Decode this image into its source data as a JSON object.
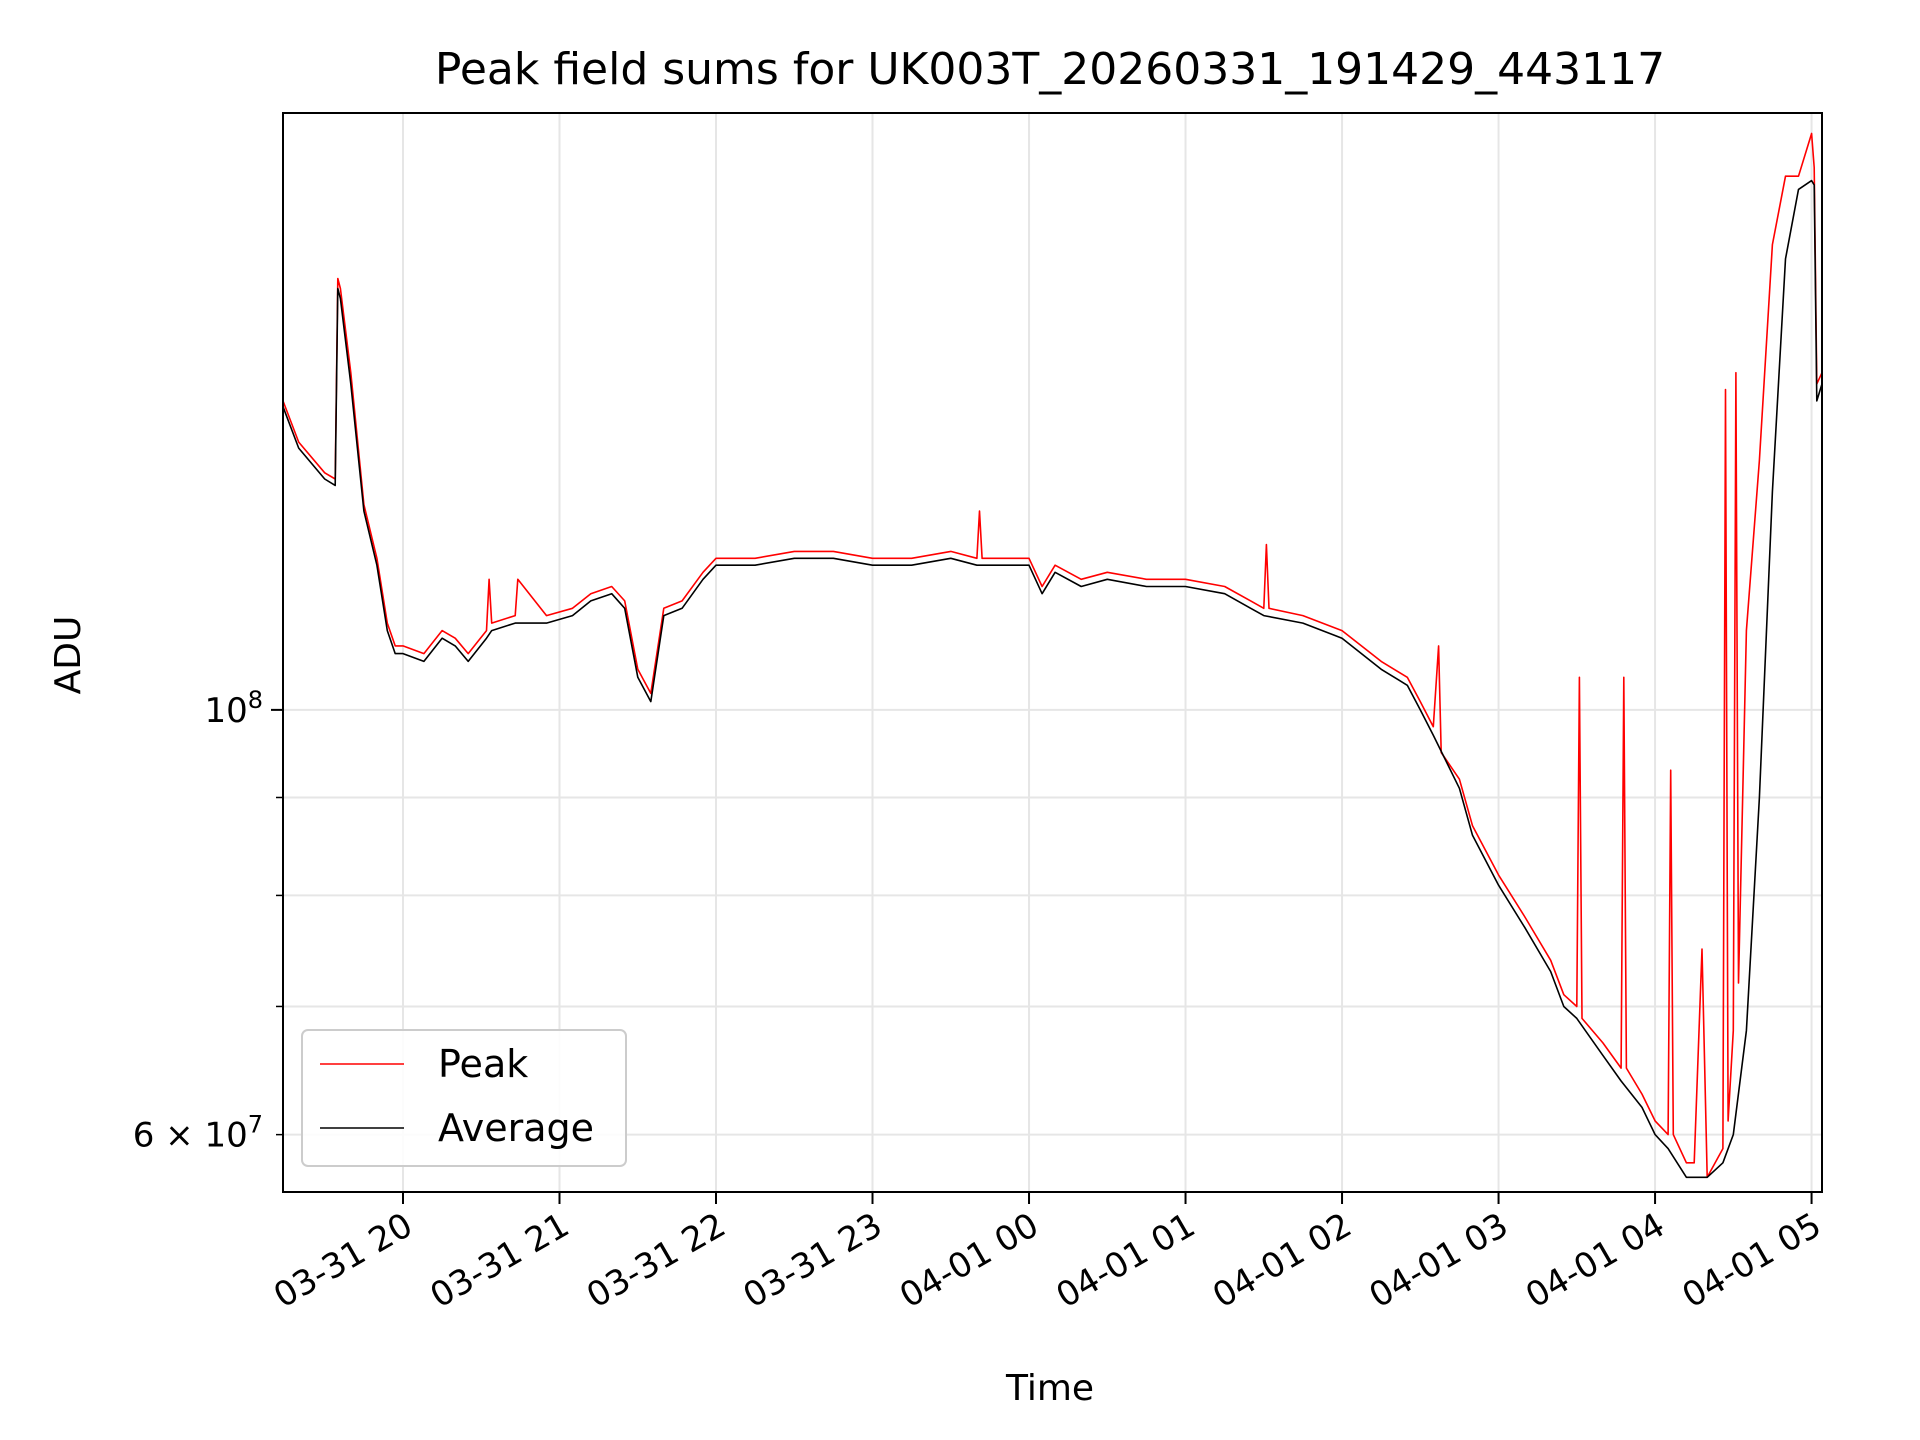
{
  "chart_data": {
    "type": "line",
    "title": "Peak field sums for UK003T_20260331_191429_443117",
    "xlabel": "Time",
    "ylabel": "ADU",
    "yscale": "log",
    "grid": true,
    "legend_position": "lower-left",
    "xlim": [
      "2026-03-31 19:14",
      "2026-04-01 05:04"
    ],
    "ylim": [
      56000000,
      205000000
    ],
    "x_ticks": [
      "2026-03-31 20:00",
      "2026-03-31 21:00",
      "2026-03-31 22:00",
      "2026-03-31 23:00",
      "2026-04-01 00:00",
      "2026-04-01 01:00",
      "2026-04-01 02:00",
      "2026-04-01 03:00",
      "2026-04-01 04:00",
      "2026-04-01 05:00"
    ],
    "x_tick_labels": [
      "03-31 20",
      "03-31 21",
      "03-31 22",
      "03-31 23",
      "04-01 00",
      "04-01 01",
      "04-01 02",
      "04-01 03",
      "04-01 04",
      "04-01 05"
    ],
    "y_major_ticks": [
      100000000
    ],
    "y_major_tick_labels": [
      "10^8"
    ],
    "y_minor_ticks": [
      60000000,
      70000000,
      80000000,
      90000000
    ],
    "y_minor_tick_labels": [
      "6 × 10^7",
      "",
      "",
      ""
    ],
    "series": [
      {
        "name": "Peak",
        "color": "#ff0000",
        "x": [
          "2026-03-31 19:14",
          "2026-03-31 19:20",
          "2026-03-31 19:30",
          "2026-03-31 19:34",
          "2026-03-31 19:35",
          "2026-03-31 19:36",
          "2026-03-31 19:40",
          "2026-03-31 19:45",
          "2026-03-31 19:50",
          "2026-03-31 19:54",
          "2026-03-31 19:57",
          "2026-03-31 20:00",
          "2026-03-31 20:08",
          "2026-03-31 20:15",
          "2026-03-31 20:20",
          "2026-03-31 20:25",
          "2026-03-31 20:32",
          "2026-03-31 20:33",
          "2026-03-31 20:34",
          "2026-03-31 20:43",
          "2026-03-31 20:44",
          "2026-03-31 20:55",
          "2026-03-31 21:05",
          "2026-03-31 21:12",
          "2026-03-31 21:20",
          "2026-03-31 21:25",
          "2026-03-31 21:30",
          "2026-03-31 21:35",
          "2026-03-31 21:40",
          "2026-03-31 21:47",
          "2026-03-31 21:55",
          "2026-03-31 22:00",
          "2026-03-31 22:15",
          "2026-03-31 22:30",
          "2026-03-31 22:45",
          "2026-03-31 23:00",
          "2026-03-31 23:15",
          "2026-03-31 23:30",
          "2026-03-31 23:40",
          "2026-03-31 23:41",
          "2026-03-31 23:42",
          "2026-03-31 23:50",
          "2026-04-01 00:00",
          "2026-04-01 00:05",
          "2026-04-01 00:10",
          "2026-04-01 00:20",
          "2026-04-01 00:30",
          "2026-04-01 00:45",
          "2026-04-01 01:00",
          "2026-04-01 01:15",
          "2026-04-01 01:25",
          "2026-04-01 01:30",
          "2026-04-01 01:31",
          "2026-04-01 01:32",
          "2026-04-01 01:45",
          "2026-04-01 02:00",
          "2026-04-01 02:15",
          "2026-04-01 02:25",
          "2026-04-01 02:30",
          "2026-04-01 02:35",
          "2026-04-01 02:37",
          "2026-04-01 02:38",
          "2026-04-01 02:45",
          "2026-04-01 02:50",
          "2026-04-01 03:00",
          "2026-04-01 03:10",
          "2026-04-01 03:20",
          "2026-04-01 03:25",
          "2026-04-01 03:30",
          "2026-04-01 03:31",
          "2026-04-01 03:32",
          "2026-04-01 03:40",
          "2026-04-01 03:47",
          "2026-04-01 03:48",
          "2026-04-01 03:49",
          "2026-04-01 03:55",
          "2026-04-01 04:00",
          "2026-04-01 04:05",
          "2026-04-01 04:06",
          "2026-04-01 04:07",
          "2026-04-01 04:12",
          "2026-04-01 04:15",
          "2026-04-01 04:18",
          "2026-04-01 04:20",
          "2026-04-01 04:26",
          "2026-04-01 04:27",
          "2026-04-01 04:28",
          "2026-04-01 04:30",
          "2026-04-01 04:31",
          "2026-04-01 04:32",
          "2026-04-01 04:35",
          "2026-04-01 04:40",
          "2026-04-01 04:45",
          "2026-04-01 04:50",
          "2026-04-01 04:55",
          "2026-04-01 05:00",
          "2026-04-01 05:01",
          "2026-04-01 05:02",
          "2026-04-01 05:04"
        ],
        "values": [
          145000000,
          138000000,
          133000000,
          132000000,
          168000000,
          166000000,
          150000000,
          128000000,
          120000000,
          111000000,
          108000000,
          108000000,
          107000000,
          110000000,
          109000000,
          107000000,
          110000000,
          117000000,
          111000000,
          112000000,
          117000000,
          112000000,
          113000000,
          115000000,
          116000000,
          114000000,
          105000000,
          102000000,
          113000000,
          114000000,
          118000000,
          120000000,
          120000000,
          121000000,
          121000000,
          120000000,
          120000000,
          121000000,
          120000000,
          127000000,
          120000000,
          120000000,
          120000000,
          116000000,
          119000000,
          117000000,
          118000000,
          117000000,
          117000000,
          116000000,
          114000000,
          113000000,
          122000000,
          113000000,
          112000000,
          110000000,
          106000000,
          104000000,
          101000000,
          98000000,
          108000000,
          95000000,
          92000000,
          87000000,
          82000000,
          78000000,
          74000000,
          71000000,
          70000000,
          104000000,
          69000000,
          67000000,
          65000000,
          104000000,
          65000000,
          63000000,
          61000000,
          60000000,
          93000000,
          60000000,
          58000000,
          58000000,
          75000000,
          57000000,
          59000000,
          147000000,
          61000000,
          68000000,
          150000000,
          72000000,
          110000000,
          135000000,
          175000000,
          190000000,
          190000000,
          200000000,
          192000000,
          148000000,
          150000000
        ]
      },
      {
        "name": "Average",
        "color": "#000000",
        "x": [
          "2026-03-31 19:14",
          "2026-03-31 19:20",
          "2026-03-31 19:30",
          "2026-03-31 19:34",
          "2026-03-31 19:35",
          "2026-03-31 19:36",
          "2026-03-31 19:40",
          "2026-03-31 19:45",
          "2026-03-31 19:50",
          "2026-03-31 19:54",
          "2026-03-31 19:57",
          "2026-03-31 20:00",
          "2026-03-31 20:08",
          "2026-03-31 20:15",
          "2026-03-31 20:20",
          "2026-03-31 20:25",
          "2026-03-31 20:32",
          "2026-03-31 20:34",
          "2026-03-31 20:43",
          "2026-03-31 20:55",
          "2026-03-31 21:05",
          "2026-03-31 21:12",
          "2026-03-31 21:20",
          "2026-03-31 21:25",
          "2026-03-31 21:30",
          "2026-03-31 21:35",
          "2026-03-31 21:40",
          "2026-03-31 21:47",
          "2026-03-31 21:55",
          "2026-03-31 22:00",
          "2026-03-31 22:15",
          "2026-03-31 22:30",
          "2026-03-31 22:45",
          "2026-03-31 23:00",
          "2026-03-31 23:15",
          "2026-03-31 23:30",
          "2026-03-31 23:40",
          "2026-03-31 23:50",
          "2026-04-01 00:00",
          "2026-04-01 00:05",
          "2026-04-01 00:10",
          "2026-04-01 00:20",
          "2026-04-01 00:30",
          "2026-04-01 00:45",
          "2026-04-01 01:00",
          "2026-04-01 01:15",
          "2026-04-01 01:25",
          "2026-04-01 01:30",
          "2026-04-01 01:45",
          "2026-04-01 02:00",
          "2026-04-01 02:15",
          "2026-04-01 02:25",
          "2026-04-01 02:30",
          "2026-04-01 02:35",
          "2026-04-01 02:45",
          "2026-04-01 02:50",
          "2026-04-01 03:00",
          "2026-04-01 03:10",
          "2026-04-01 03:20",
          "2026-04-01 03:25",
          "2026-04-01 03:30",
          "2026-04-01 03:40",
          "2026-04-01 03:47",
          "2026-04-01 03:55",
          "2026-04-01 04:00",
          "2026-04-01 04:05",
          "2026-04-01 04:12",
          "2026-04-01 04:15",
          "2026-04-01 04:20",
          "2026-04-01 04:26",
          "2026-04-01 04:30",
          "2026-04-01 04:35",
          "2026-04-01 04:40",
          "2026-04-01 04:45",
          "2026-04-01 04:50",
          "2026-04-01 04:55",
          "2026-04-01 05:00",
          "2026-04-01 05:01",
          "2026-04-01 05:02",
          "2026-04-01 05:04"
        ],
        "values": [
          144000000,
          137000000,
          132000000,
          131000000,
          166000000,
          164000000,
          148000000,
          127000000,
          119000000,
          110000000,
          107000000,
          107000000,
          106000000,
          109000000,
          108000000,
          106000000,
          109000000,
          110000000,
          111000000,
          111000000,
          112000000,
          114000000,
          115000000,
          113000000,
          104000000,
          101000000,
          112000000,
          113000000,
          117000000,
          119000000,
          119000000,
          120000000,
          120000000,
          119000000,
          119000000,
          120000000,
          119000000,
          119000000,
          119000000,
          115000000,
          118000000,
          116000000,
          117000000,
          116000000,
          116000000,
          115000000,
          113000000,
          112000000,
          111000000,
          109000000,
          105000000,
          103000000,
          100000000,
          97000000,
          91000000,
          86000000,
          81000000,
          77000000,
          73000000,
          70000000,
          69000000,
          66000000,
          64000000,
          62000000,
          60000000,
          59000000,
          57000000,
          57000000,
          57000000,
          58000000,
          60000000,
          68000000,
          90000000,
          130000000,
          172000000,
          187000000,
          189000000,
          188000000,
          145000000,
          148000000
        ]
      }
    ]
  }
}
